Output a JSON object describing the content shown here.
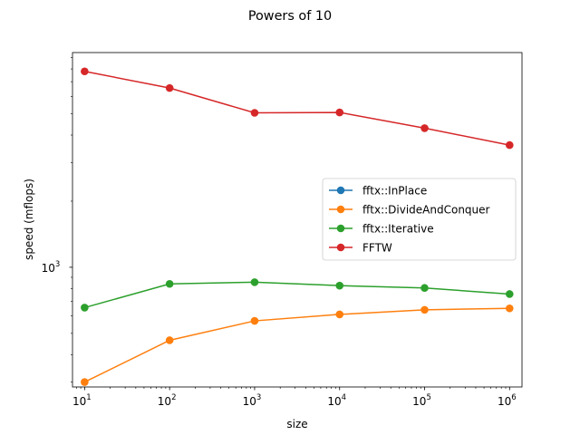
{
  "chart_data": {
    "type": "line",
    "title": "Powers of 10",
    "xlabel": "size",
    "ylabel": "speed (mflops)",
    "xscale": "log",
    "yscale": "log",
    "xlim": [
      7.2,
      1400000
    ],
    "ylim": [
      285,
      9500
    ],
    "x": [
      10,
      100,
      1000,
      10000,
      100000,
      1000000
    ],
    "x_tick_labels": [
      {
        "base": "10",
        "exp": "1"
      },
      {
        "base": "10",
        "exp": "2"
      },
      {
        "base": "10",
        "exp": "3"
      },
      {
        "base": "10",
        "exp": "4"
      },
      {
        "base": "10",
        "exp": "5"
      },
      {
        "base": "10",
        "exp": "6"
      }
    ],
    "y_tick_labels": [
      {
        "base": "10",
        "exp": "3",
        "value": 1000
      }
    ],
    "grid": false,
    "legend_position": "center-right",
    "series": [
      {
        "name": "fftx::InPlace",
        "color": "#1f77b4",
        "values": [
          null,
          null,
          null,
          null,
          null,
          null
        ]
      },
      {
        "name": "fftx::DivideAndConquer",
        "color": "#ff7f0e",
        "values": [
          300,
          465,
          570,
          610,
          640,
          650
        ]
      },
      {
        "name": "fftx::Iterative",
        "color": "#2ca02c",
        "values": [
          655,
          840,
          855,
          825,
          805,
          755
        ]
      },
      {
        "name": "FFTW",
        "color": "#d62728",
        "values": [
          7800,
          6550,
          5050,
          5070,
          4300,
          3600
        ]
      }
    ]
  }
}
